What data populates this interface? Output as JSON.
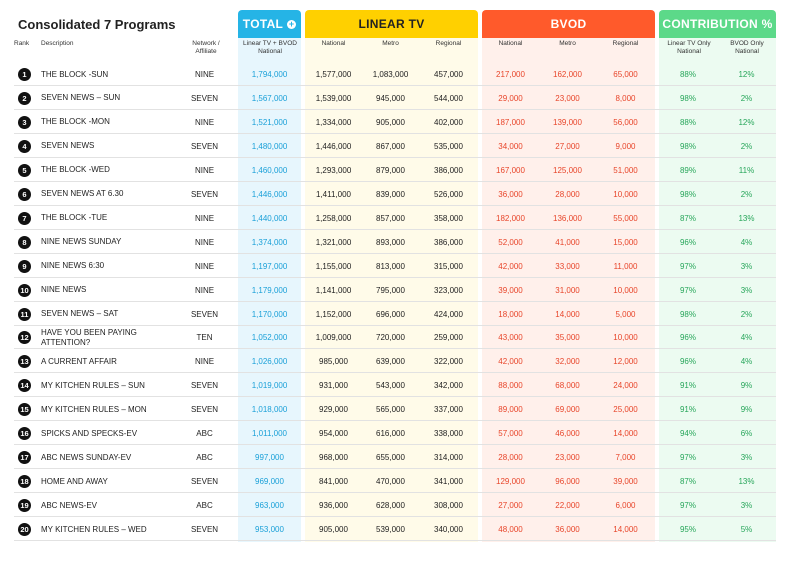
{
  "title": "Consolidated 7 Programs",
  "bands": {
    "total": "TOTAL",
    "linear": "LINEAR TV",
    "bvod": "BVOD",
    "contribution": "CONTRIBUTION %"
  },
  "headers": {
    "rank": "Rank",
    "description": "Description",
    "network": "Network / Affiliate",
    "total": "Linear TV + BVOD National",
    "linear_national": "National",
    "linear_metro": "Metro",
    "linear_regional": "Regional",
    "bvod_national": "National",
    "bvod_metro": "Metro",
    "bvod_regional": "Regional",
    "linear_only": "Linear TV Only National",
    "bvod_only": "BVOD Only National"
  },
  "rows": [
    {
      "rank": "1",
      "desc": "THE BLOCK -SUN",
      "net": "NINE",
      "total": "1,794,000",
      "ln": "1,577,000",
      "lm": "1,083,000",
      "lr": "457,000",
      "bn": "217,000",
      "bm": "162,000",
      "br": "65,000",
      "lin": "88%",
      "bv": "12%"
    },
    {
      "rank": "2",
      "desc": "SEVEN NEWS – SUN",
      "net": "SEVEN",
      "total": "1,567,000",
      "ln": "1,539,000",
      "lm": "945,000",
      "lr": "544,000",
      "bn": "29,000",
      "bm": "23,000",
      "br": "8,000",
      "lin": "98%",
      "bv": "2%"
    },
    {
      "rank": "3",
      "desc": "THE BLOCK -MON",
      "net": "NINE",
      "total": "1,521,000",
      "ln": "1,334,000",
      "lm": "905,000",
      "lr": "402,000",
      "bn": "187,000",
      "bm": "139,000",
      "br": "56,000",
      "lin": "88%",
      "bv": "12%"
    },
    {
      "rank": "4",
      "desc": "SEVEN NEWS",
      "net": "SEVEN",
      "total": "1,480,000",
      "ln": "1,446,000",
      "lm": "867,000",
      "lr": "535,000",
      "bn": "34,000",
      "bm": "27,000",
      "br": "9,000",
      "lin": "98%",
      "bv": "2%"
    },
    {
      "rank": "5",
      "desc": "THE BLOCK -WED",
      "net": "NINE",
      "total": "1,460,000",
      "ln": "1,293,000",
      "lm": "879,000",
      "lr": "386,000",
      "bn": "167,000",
      "bm": "125,000",
      "br": "51,000",
      "lin": "89%",
      "bv": "11%"
    },
    {
      "rank": "6",
      "desc": "SEVEN NEWS AT 6.30",
      "net": "SEVEN",
      "total": "1,446,000",
      "ln": "1,411,000",
      "lm": "839,000",
      "lr": "526,000",
      "bn": "36,000",
      "bm": "28,000",
      "br": "10,000",
      "lin": "98%",
      "bv": "2%"
    },
    {
      "rank": "7",
      "desc": "THE BLOCK -TUE",
      "net": "NINE",
      "total": "1,440,000",
      "ln": "1,258,000",
      "lm": "857,000",
      "lr": "358,000",
      "bn": "182,000",
      "bm": "136,000",
      "br": "55,000",
      "lin": "87%",
      "bv": "13%"
    },
    {
      "rank": "8",
      "desc": "NINE NEWS SUNDAY",
      "net": "NINE",
      "total": "1,374,000",
      "ln": "1,321,000",
      "lm": "893,000",
      "lr": "386,000",
      "bn": "52,000",
      "bm": "41,000",
      "br": "15,000",
      "lin": "96%",
      "bv": "4%"
    },
    {
      "rank": "9",
      "desc": "NINE NEWS 6:30",
      "net": "NINE",
      "total": "1,197,000",
      "ln": "1,155,000",
      "lm": "813,000",
      "lr": "315,000",
      "bn": "42,000",
      "bm": "33,000",
      "br": "11,000",
      "lin": "97%",
      "bv": "3%"
    },
    {
      "rank": "10",
      "desc": "NINE NEWS",
      "net": "NINE",
      "total": "1,179,000",
      "ln": "1,141,000",
      "lm": "795,000",
      "lr": "323,000",
      "bn": "39,000",
      "bm": "31,000",
      "br": "10,000",
      "lin": "97%",
      "bv": "3%"
    },
    {
      "rank": "11",
      "desc": "SEVEN NEWS – SAT",
      "net": "SEVEN",
      "total": "1,170,000",
      "ln": "1,152,000",
      "lm": "696,000",
      "lr": "424,000",
      "bn": "18,000",
      "bm": "14,000",
      "br": "5,000",
      "lin": "98%",
      "bv": "2%"
    },
    {
      "rank": "12",
      "desc": "HAVE YOU BEEN PAYING ATTENTION?",
      "net": "TEN",
      "total": "1,052,000",
      "ln": "1,009,000",
      "lm": "720,000",
      "lr": "259,000",
      "bn": "43,000",
      "bm": "35,000",
      "br": "10,000",
      "lin": "96%",
      "bv": "4%"
    },
    {
      "rank": "13",
      "desc": "A CURRENT AFFAIR",
      "net": "NINE",
      "total": "1,026,000",
      "ln": "985,000",
      "lm": "639,000",
      "lr": "322,000",
      "bn": "42,000",
      "bm": "32,000",
      "br": "12,000",
      "lin": "96%",
      "bv": "4%"
    },
    {
      "rank": "14",
      "desc": "MY KITCHEN RULES – SUN",
      "net": "SEVEN",
      "total": "1,019,000",
      "ln": "931,000",
      "lm": "543,000",
      "lr": "342,000",
      "bn": "88,000",
      "bm": "68,000",
      "br": "24,000",
      "lin": "91%",
      "bv": "9%"
    },
    {
      "rank": "15",
      "desc": "MY KITCHEN RULES – MON",
      "net": "SEVEN",
      "total": "1,018,000",
      "ln": "929,000",
      "lm": "565,000",
      "lr": "337,000",
      "bn": "89,000",
      "bm": "69,000",
      "br": "25,000",
      "lin": "91%",
      "bv": "9%"
    },
    {
      "rank": "16",
      "desc": "SPICKS AND SPECKS-EV",
      "net": "ABC",
      "total": "1,011,000",
      "ln": "954,000",
      "lm": "616,000",
      "lr": "338,000",
      "bn": "57,000",
      "bm": "46,000",
      "br": "14,000",
      "lin": "94%",
      "bv": "6%"
    },
    {
      "rank": "17",
      "desc": "ABC NEWS SUNDAY-EV",
      "net": "ABC",
      "total": "997,000",
      "ln": "968,000",
      "lm": "655,000",
      "lr": "314,000",
      "bn": "28,000",
      "bm": "23,000",
      "br": "7,000",
      "lin": "97%",
      "bv": "3%"
    },
    {
      "rank": "18",
      "desc": "HOME AND AWAY",
      "net": "SEVEN",
      "total": "969,000",
      "ln": "841,000",
      "lm": "470,000",
      "lr": "341,000",
      "bn": "129,000",
      "bm": "96,000",
      "br": "39,000",
      "lin": "87%",
      "bv": "13%"
    },
    {
      "rank": "19",
      "desc": "ABC NEWS-EV",
      "net": "ABC",
      "total": "963,000",
      "ln": "936,000",
      "lm": "628,000",
      "lr": "308,000",
      "bn": "27,000",
      "bm": "22,000",
      "br": "6,000",
      "lin": "97%",
      "bv": "3%"
    },
    {
      "rank": "20",
      "desc": "MY KITCHEN RULES – WED",
      "net": "SEVEN",
      "total": "953,000",
      "ln": "905,000",
      "lm": "539,000",
      "lr": "340,000",
      "bn": "48,000",
      "bm": "36,000",
      "br": "14,000",
      "lin": "95%",
      "bv": "5%"
    }
  ]
}
